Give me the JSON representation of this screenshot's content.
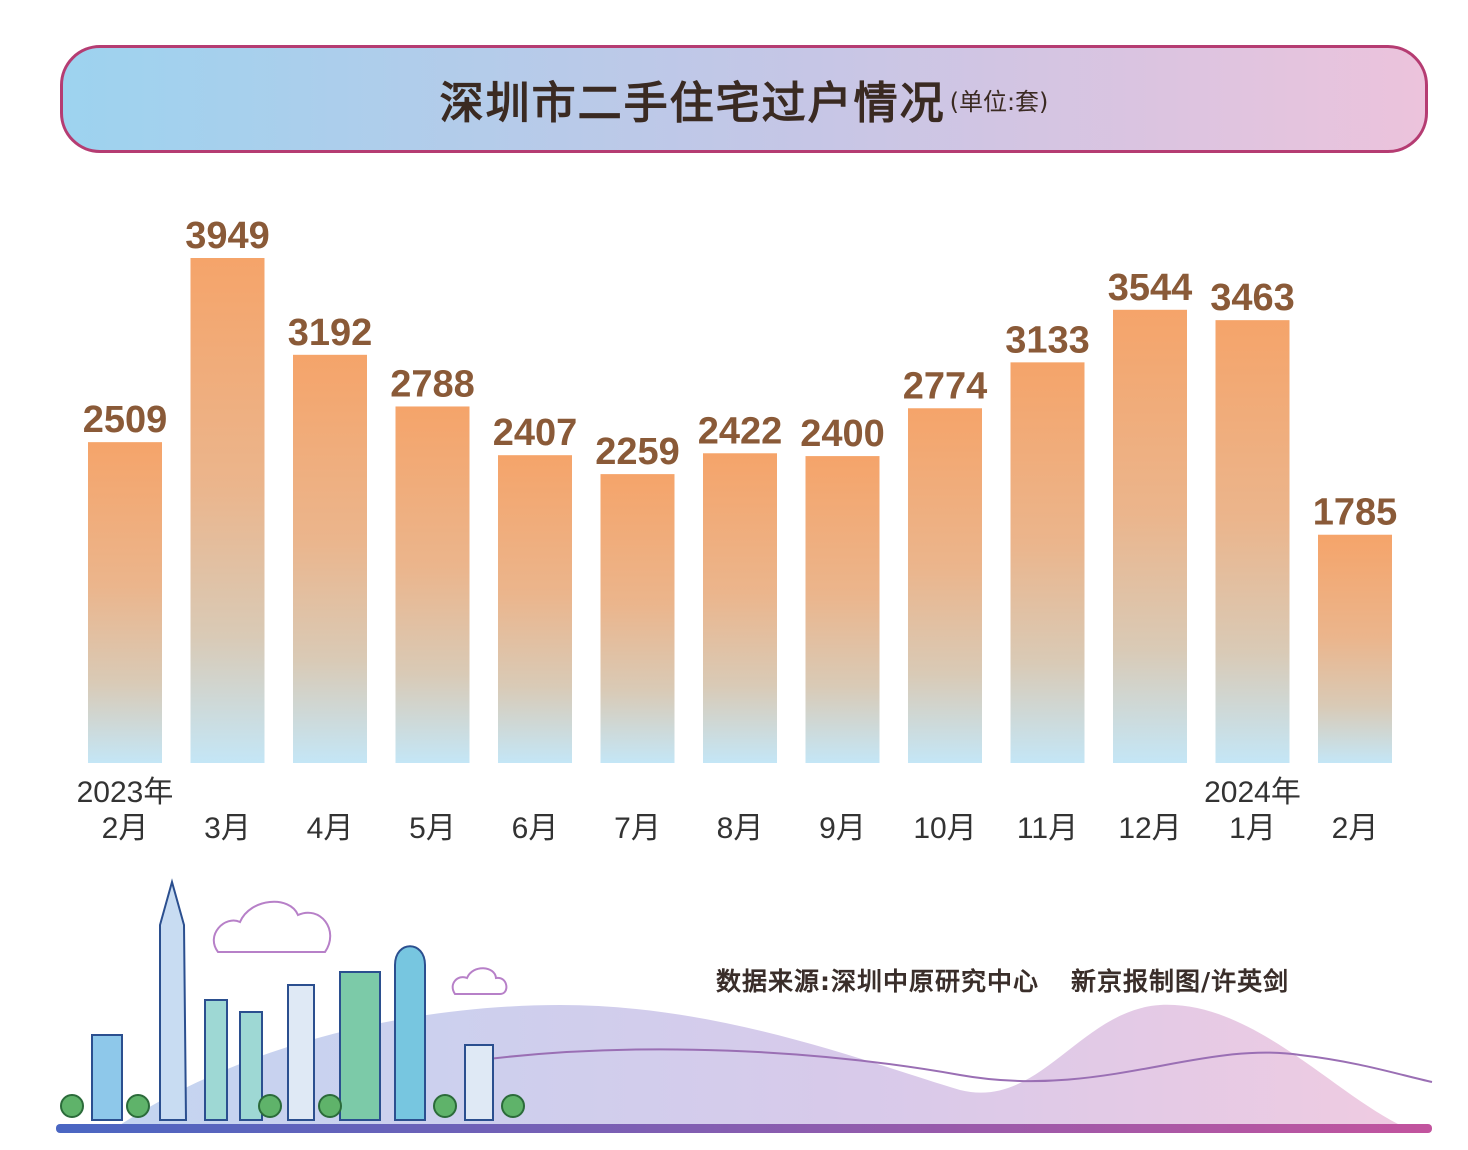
{
  "title": "深圳市二手住宅过户情况",
  "unit": "(单位:套)",
  "source": "数据来源:深圳中原研究中心",
  "credit": "新京报制图/许英剑",
  "colors": {
    "bar_top": "#f5a46a",
    "bar_bottom": "#c4e6f6",
    "label": "#8a5a38",
    "banner_border": "#b53c72"
  },
  "chart_data": {
    "type": "bar",
    "categories": [
      "2023年 2月",
      "3月",
      "4月",
      "5月",
      "6月",
      "7月",
      "8月",
      "9月",
      "10月",
      "11月",
      "12月",
      "2024年 1月",
      "2月"
    ],
    "tick_labels": [
      {
        "year": "2023年",
        "month": "2月"
      },
      {
        "year": "",
        "month": "3月"
      },
      {
        "year": "",
        "month": "4月"
      },
      {
        "year": "",
        "month": "5月"
      },
      {
        "year": "",
        "month": "6月"
      },
      {
        "year": "",
        "month": "7月"
      },
      {
        "year": "",
        "month": "8月"
      },
      {
        "year": "",
        "month": "9月"
      },
      {
        "year": "",
        "month": "10月"
      },
      {
        "year": "",
        "month": "11月"
      },
      {
        "year": "",
        "month": "12月"
      },
      {
        "year": "2024年",
        "month": "1月"
      },
      {
        "year": "",
        "month": "2月"
      }
    ],
    "values": [
      2509,
      3949,
      3192,
      2788,
      2407,
      2259,
      2422,
      2400,
      2774,
      3133,
      3544,
      3463,
      1785
    ],
    "data_labels": [
      "2509",
      "3949",
      "3192",
      "2788",
      "2407",
      "2259",
      "2422",
      "2400",
      "2774",
      "3133",
      "3544",
      "3463",
      "1785"
    ],
    "title": "深圳市二手住宅过户情况",
    "unit": "单位:套",
    "xlabel": "",
    "ylabel": "",
    "ylim": [
      0,
      3949
    ],
    "grid": false,
    "legend": "none"
  }
}
